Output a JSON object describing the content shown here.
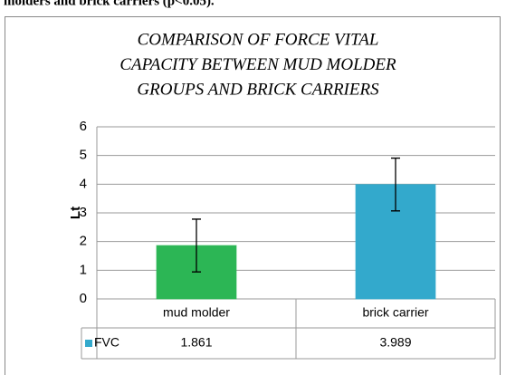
{
  "caption": "molders and brick carriers (p<0.05).",
  "chart_data": {
    "type": "bar",
    "title_lines": [
      "COMPARISON OF FORCE VITAL",
      "CAPACITY BETWEEN MUD MOLDER",
      "GROUPS AND BRICK CARRIERS"
    ],
    "ylabel": "Lt",
    "categories": [
      "mud molder",
      "brick carrier"
    ],
    "series": [
      {
        "name": "FVC",
        "color": "#33a9cc",
        "values": [
          1.861,
          3.989
        ],
        "errors": [
          0.92,
          0.92
        ],
        "bar_colors": [
          "#2cb655",
          "#33a9cc"
        ]
      }
    ],
    "ylim": [
      0,
      6
    ],
    "yticks": [
      0,
      1,
      2,
      3,
      4,
      5,
      6
    ],
    "grid": true
  }
}
